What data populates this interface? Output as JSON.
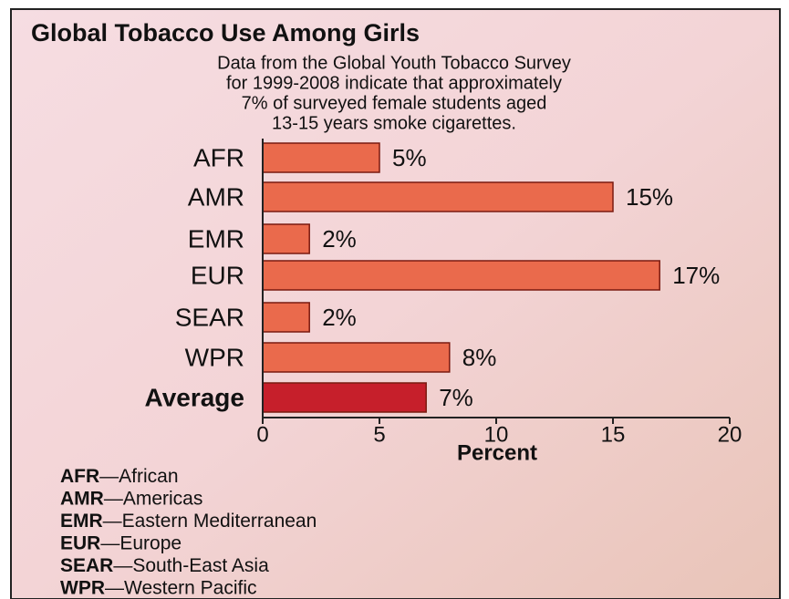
{
  "chart_data": {
    "type": "bar",
    "orientation": "horizontal",
    "title": "Global Tobacco Use Among Girls",
    "subtitle": [
      "Data from the Global Youth Tobacco Survey",
      "for 1999-2008 indicate that approximately",
      "7% of surveyed female students aged",
      "13-15 years smoke cigarettes."
    ],
    "categories": [
      "AFR",
      "AMR",
      "EMR",
      "EUR",
      "SEAR",
      "WPR",
      "Average"
    ],
    "values": [
      5,
      15,
      2,
      17,
      2,
      8,
      7
    ],
    "value_labels": [
      "5%",
      "15%",
      "2%",
      "17%",
      "2%",
      "8%",
      "7%"
    ],
    "colors": [
      "#ea6a4c",
      "#ea6a4c",
      "#ea6a4c",
      "#ea6a4c",
      "#ea6a4c",
      "#ea6a4c",
      "#c61f2b"
    ],
    "xlabel": "Percent",
    "xlim": [
      0,
      20
    ],
    "xticks": [
      0,
      5,
      10,
      15,
      20
    ],
    "key_separator": "—",
    "key": [
      {
        "abbr": "AFR",
        "name": "African"
      },
      {
        "abbr": "AMR",
        "name": "Americas"
      },
      {
        "abbr": "EMR",
        "name": "Eastern Mediterranean"
      },
      {
        "abbr": "EUR",
        "name": "Europe"
      },
      {
        "abbr": "SEAR",
        "name": "South-East Asia"
      },
      {
        "abbr": "WPR",
        "name": "Western Pacific"
      }
    ]
  }
}
